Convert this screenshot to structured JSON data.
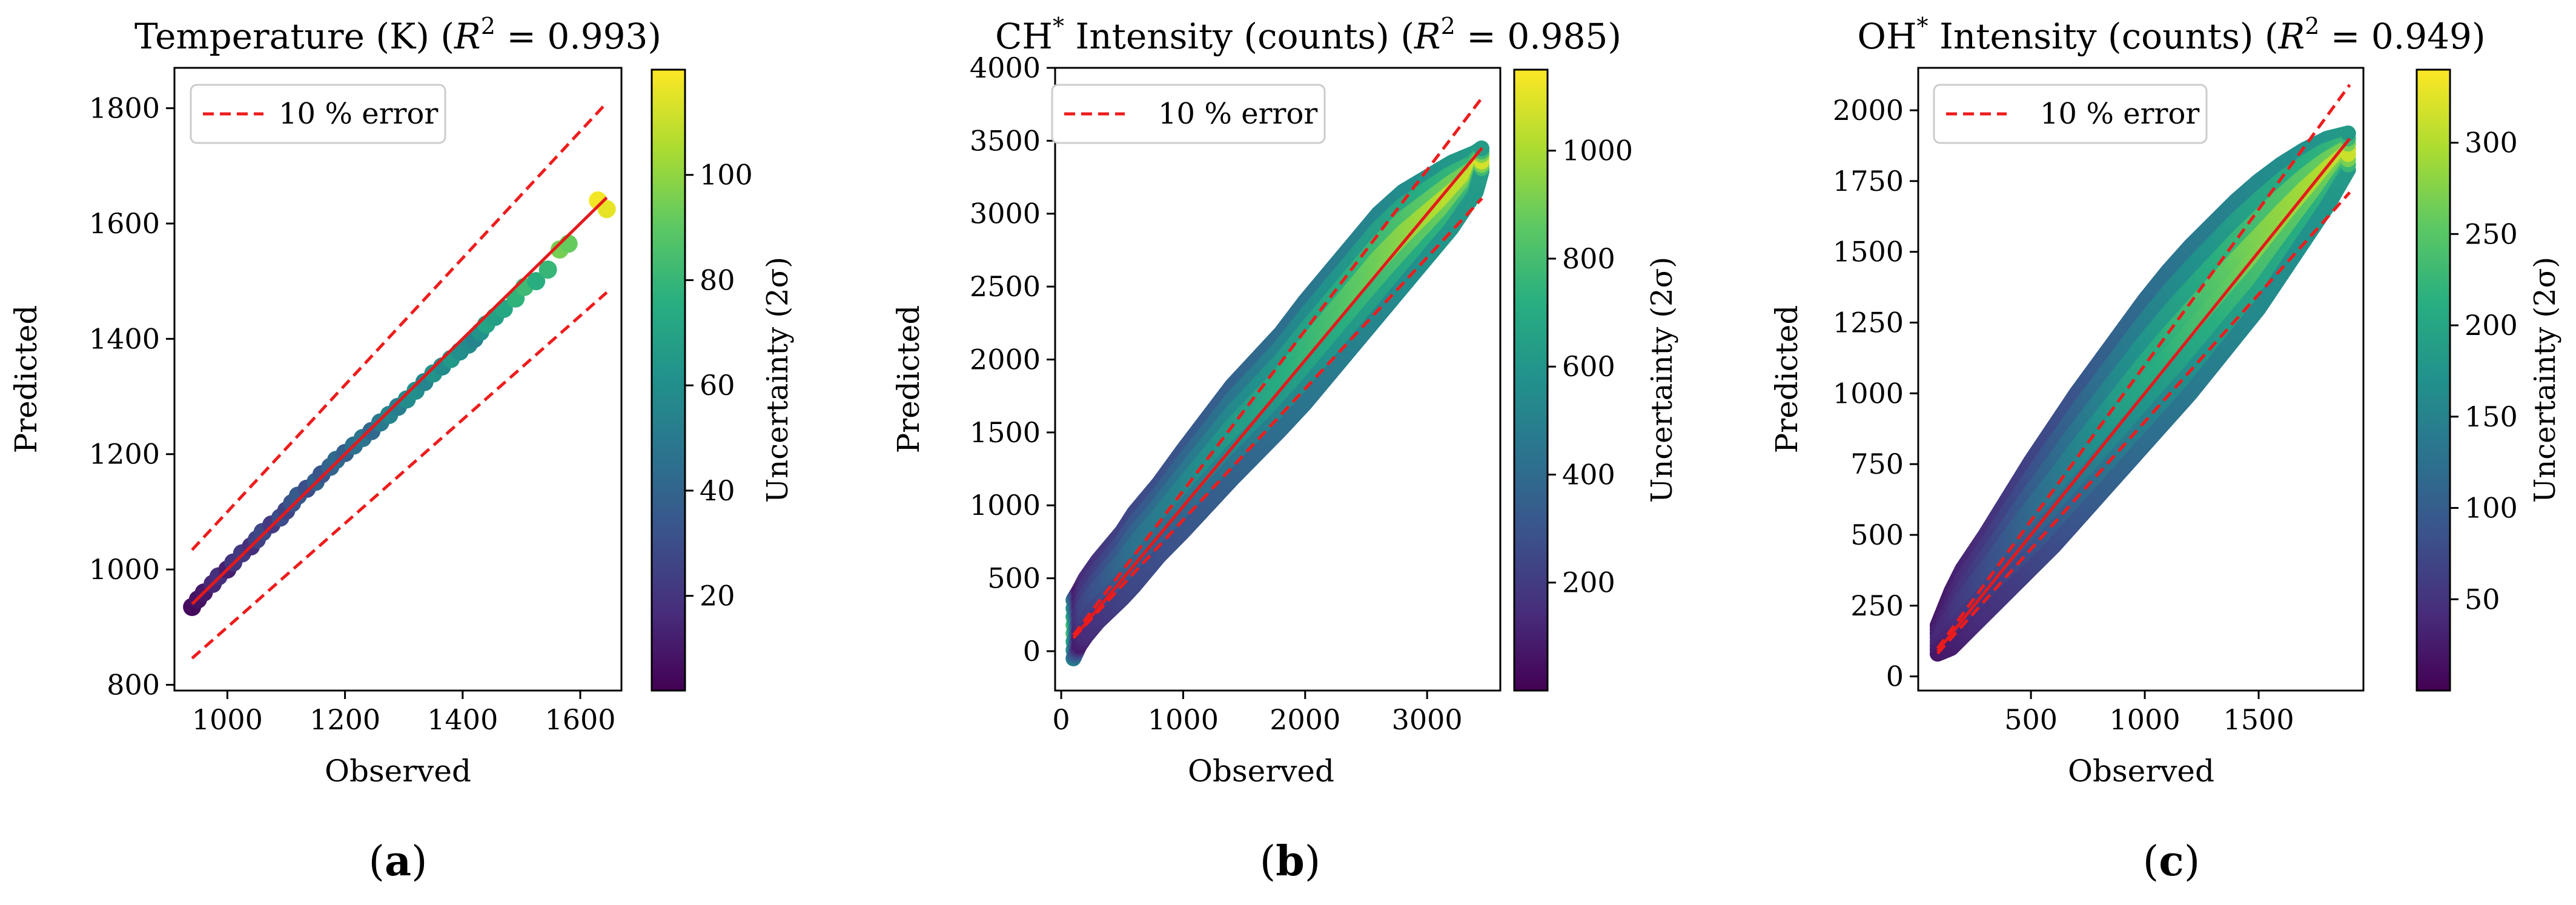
{
  "chart_data": [
    {
      "type": "scatter",
      "panel": "(a)",
      "panel_letter": "a",
      "title_main": "Temperature (K) (",
      "title_stat": "R",
      "title_sup": "2",
      "title_value": " = 0.993)",
      "xlabel": "Observed",
      "ylabel": "Predicted",
      "xlim": [
        910,
        1670
      ],
      "ylim": [
        790,
        1870
      ],
      "xticks": [
        1000,
        1200,
        1400,
        1600
      ],
      "yticks": [
        800,
        1000,
        1200,
        1400,
        1600,
        1800
      ],
      "legend": "10 % error",
      "colorbar": {
        "label": "Uncertainty (2σ)",
        "min": 2,
        "max": 120,
        "ticks": [
          20,
          40,
          60,
          80,
          100
        ]
      },
      "fit_line": [
        [
          940,
          940
        ],
        [
          1645,
          1645
        ]
      ],
      "error_band": {
        "lower_factor": 0.9,
        "upper_factor": 1.1,
        "x_range": [
          940,
          1645
        ]
      },
      "series": [
        {
          "name": "observations",
          "x": [
            940,
            950,
            960,
            975,
            985,
            1000,
            1010,
            1025,
            1040,
            1050,
            1060,
            1075,
            1090,
            1100,
            1110,
            1120,
            1135,
            1150,
            1160,
            1175,
            1185,
            1200,
            1215,
            1230,
            1245,
            1260,
            1275,
            1290,
            1305,
            1320,
            1335,
            1350,
            1365,
            1380,
            1395,
            1410,
            1420,
            1430,
            1440,
            1455,
            1470,
            1490,
            1505,
            1525,
            1545,
            1565,
            1580,
            1630,
            1645
          ],
          "y": [
            935,
            948,
            960,
            975,
            988,
            1000,
            1012,
            1028,
            1040,
            1052,
            1065,
            1078,
            1090,
            1102,
            1115,
            1128,
            1140,
            1152,
            1165,
            1178,
            1190,
            1202,
            1215,
            1228,
            1240,
            1255,
            1268,
            1282,
            1295,
            1310,
            1325,
            1340,
            1352,
            1365,
            1378,
            1390,
            1400,
            1412,
            1425,
            1438,
            1452,
            1470,
            1490,
            1500,
            1520,
            1555,
            1565,
            1640,
            1625
          ],
          "color_value": [
            5,
            8,
            10,
            15,
            18,
            12,
            20,
            22,
            18,
            25,
            28,
            22,
            30,
            26,
            32,
            35,
            30,
            38,
            33,
            40,
            42,
            38,
            45,
            48,
            42,
            50,
            55,
            52,
            58,
            60,
            55,
            62,
            58,
            65,
            60,
            58,
            55,
            62,
            70,
            68,
            72,
            78,
            82,
            75,
            80,
            95,
            92,
            118,
            116
          ]
        }
      ]
    },
    {
      "type": "scatter",
      "panel": "(b)",
      "panel_letter": "b",
      "title_main": "CH",
      "title_sup_star": "*",
      "title_rest": " Intensity (counts) (",
      "title_stat": "R",
      "title_sup": "2",
      "title_value": " = 0.985)",
      "xlabel": "Observed",
      "ylabel": "Predicted",
      "xlim": [
        -50,
        3600
      ],
      "ylim": [
        -270,
        4000
      ],
      "xticks": [
        0,
        1000,
        2000,
        3000
      ],
      "yticks": [
        0,
        500,
        1000,
        1500,
        2000,
        2500,
        3000,
        3500,
        4000
      ],
      "legend": "10 % error",
      "colorbar": {
        "label": "Uncertainty (2σ)",
        "min": 0,
        "max": 1150,
        "ticks": [
          200,
          400,
          600,
          800,
          1000
        ]
      },
      "fit_line": [
        [
          100,
          90
        ],
        [
          3450,
          3450
        ]
      ],
      "error_band": {
        "lower_factor": 0.9,
        "upper_factor": 1.1,
        "x_range": [
          100,
          3450
        ]
      },
      "series": [
        {
          "name": "observations",
          "x": [
            100,
            150,
            200,
            300,
            400,
            500,
            600,
            800,
            1000,
            1200,
            1400,
            1600,
            1800,
            2000,
            2200,
            2400,
            2600,
            2800,
            3000,
            3200,
            3400,
            3450
          ],
          "y_upper": [
            350,
            420,
            500,
            620,
            720,
            820,
            950,
            1150,
            1380,
            1600,
            1820,
            2000,
            2180,
            2400,
            2600,
            2800,
            3000,
            3150,
            3250,
            3350,
            3420,
            3450
          ],
          "y_lower": [
            -50,
            40,
            100,
            200,
            280,
            360,
            450,
            650,
            820,
            1000,
            1180,
            1350,
            1520,
            1700,
            1900,
            2100,
            2300,
            2500,
            2700,
            2900,
            3150,
            3300
          ],
          "color_value": [
            900,
            150,
            250,
            300,
            350,
            400,
            450,
            500,
            550,
            600,
            650,
            700,
            750,
            800,
            850,
            900,
            950,
            1000,
            1050,
            1100,
            1120,
            1150
          ]
        }
      ]
    },
    {
      "type": "scatter",
      "panel": "(c)",
      "panel_letter": "c",
      "title_main": "OH",
      "title_sup_star": "*",
      "title_rest": " Intensity (counts) (",
      "title_stat": "R",
      "title_sup": "2",
      "title_value": " = 0.949)",
      "xlabel": "Observed",
      "ylabel": "Predicted",
      "xlim": [
        5,
        1960
      ],
      "ylim": [
        -50,
        2150
      ],
      "xticks": [
        500,
        1000,
        1500
      ],
      "yticks": [
        0,
        250,
        500,
        750,
        1000,
        1250,
        1500,
        1750,
        2000
      ],
      "legend": "10 % error",
      "colorbar": {
        "label": "Uncertainty (2σ)",
        "min": 0,
        "max": 340,
        "ticks": [
          50,
          100,
          150,
          200,
          250,
          300
        ]
      },
      "fit_line": [
        [
          90,
          90
        ],
        [
          1900,
          1900
        ]
      ],
      "error_band": {
        "lower_factor": 0.9,
        "upper_factor": 1.1,
        "x_range": [
          90,
          1900
        ]
      },
      "series": [
        {
          "name": "observations",
          "x": [
            90,
            150,
            200,
            300,
            400,
            500,
            600,
            700,
            800,
            900,
            1000,
            1100,
            1200,
            1300,
            1400,
            1500,
            1600,
            1700,
            1800,
            1900
          ],
          "y_upper": [
            180,
            300,
            380,
            500,
            630,
            760,
            880,
            1000,
            1110,
            1220,
            1330,
            1430,
            1520,
            1600,
            1680,
            1750,
            1810,
            1860,
            1900,
            1920
          ],
          "y_lower": [
            80,
            100,
            140,
            220,
            300,
            380,
            460,
            550,
            640,
            730,
            820,
            910,
            1000,
            1100,
            1200,
            1300,
            1420,
            1540,
            1660,
            1800
          ],
          "color_value": [
            40,
            45,
            60,
            80,
            100,
            120,
            140,
            160,
            180,
            200,
            215,
            230,
            245,
            260,
            275,
            290,
            300,
            310,
            320,
            335
          ]
        }
      ]
    }
  ]
}
